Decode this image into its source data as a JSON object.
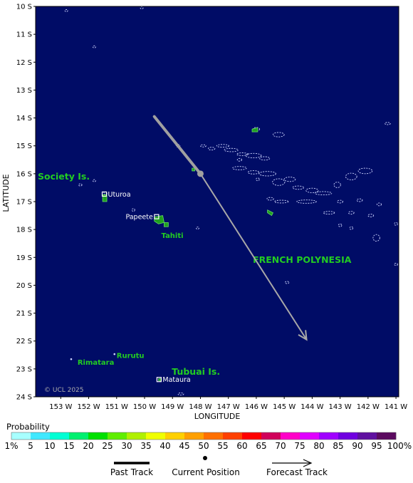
{
  "map": {
    "ocean_color": "#000c66",
    "land_color": "#20a020",
    "lon_range": [
      -153.9,
      -140.9
    ],
    "lat_range": [
      -24,
      -10
    ],
    "x_axis_title": "LONGITUDE",
    "y_axis_title": "LATITUDE",
    "lat_ticks": [
      {
        "value": -10,
        "label": "10 S"
      },
      {
        "value": -11,
        "label": "11 S"
      },
      {
        "value": -12,
        "label": "12 S"
      },
      {
        "value": -13,
        "label": "13 S"
      },
      {
        "value": -14,
        "label": "14 S"
      },
      {
        "value": -15,
        "label": "15 S"
      },
      {
        "value": -16,
        "label": "16 S"
      },
      {
        "value": -17,
        "label": "17 S"
      },
      {
        "value": -18,
        "label": "18 S"
      },
      {
        "value": -19,
        "label": "19 S"
      },
      {
        "value": -20,
        "label": "20 S"
      },
      {
        "value": -21,
        "label": "21 S"
      },
      {
        "value": -22,
        "label": "22 S"
      },
      {
        "value": -23,
        "label": "23 S"
      },
      {
        "value": -24,
        "label": "24 S"
      }
    ],
    "lon_ticks": [
      {
        "value": -153,
        "label": "153 W"
      },
      {
        "value": -152,
        "label": "152 W"
      },
      {
        "value": -151,
        "label": "151 W"
      },
      {
        "value": -150,
        "label": "150 W"
      },
      {
        "value": -149,
        "label": "149 W"
      },
      {
        "value": -148,
        "label": "148 W"
      },
      {
        "value": -147,
        "label": "147 W"
      },
      {
        "value": -146,
        "label": "146 W"
      },
      {
        "value": -145,
        "label": "145 W"
      },
      {
        "value": -144,
        "label": "144 W"
      },
      {
        "value": -143,
        "label": "143 W"
      },
      {
        "value": -142,
        "label": "142 W"
      },
      {
        "value": -141,
        "label": "141 W"
      }
    ],
    "region_labels": [
      {
        "name": "society-islands-label",
        "text": "Society Is.",
        "lon": -153.9,
        "lat": -16.1
      },
      {
        "name": "french-polynesia-label",
        "text": "FRENCH POLYNESIA",
        "lon": -146.2,
        "lat": -19.1
      },
      {
        "name": "tubuai-islands-label",
        "text": "Tubuai Is.",
        "lon": -149.1,
        "lat": -23.1
      }
    ],
    "places": [
      {
        "name": "uturoa",
        "label": "Uturoa",
        "lon": -151.44,
        "lat": -16.73,
        "labelSide": "right",
        "labelColor": "white"
      },
      {
        "name": "papeete",
        "label": "Papeete",
        "lon": -149.57,
        "lat": -17.54,
        "labelSide": "left",
        "labelColor": "white"
      },
      {
        "name": "mataura",
        "label": "Mataura",
        "lon": -149.48,
        "lat": -23.38,
        "labelSide": "right",
        "labelColor": "white"
      }
    ],
    "green_labels": [
      {
        "name": "tahiti-label",
        "text": "Tahiti",
        "lon": -149.4,
        "lat": -18.2
      },
      {
        "name": "rurutu-label",
        "text": "Rurutu",
        "lon": -151.0,
        "lat": -22.5
      },
      {
        "name": "rimatara-label",
        "text": "Rimatara",
        "lon": -152.4,
        "lat": -22.75
      }
    ],
    "copyright": "© UCL 2025",
    "current_position": {
      "lon": -148.0,
      "lat": -16.0
    },
    "past_track": [
      {
        "lon": -149.65,
        "lat": -13.95
      },
      {
        "lon": -148.0,
        "lat": -16.0
      }
    ],
    "forecast_track": [
      {
        "lon": -148.0,
        "lat": -16.0
      },
      {
        "lon": -144.2,
        "lat": -21.95
      }
    ]
  },
  "legend": {
    "title": "Probability",
    "colors": [
      "#a8ffff",
      "#40e8ff",
      "#00ffd4",
      "#00f070",
      "#00e000",
      "#60ee00",
      "#b0f000",
      "#f0ff00",
      "#ffd000",
      "#ffa000",
      "#ff7000",
      "#ff4000",
      "#ff0000",
      "#d0005a",
      "#ff00c8",
      "#e000ff",
      "#a000ff",
      "#7000e0",
      "#6010a0",
      "#5c0a60"
    ],
    "labels": [
      "1%",
      "5",
      "10",
      "15",
      "20",
      "25",
      "30",
      "35",
      "40",
      "45",
      "50",
      "55",
      "60",
      "65",
      "70",
      "75",
      "80",
      "85",
      "90",
      "95",
      "100%"
    ]
  },
  "track_key": {
    "past": "Past Track",
    "current": "Current Position",
    "forecast": "Forecast Track"
  }
}
